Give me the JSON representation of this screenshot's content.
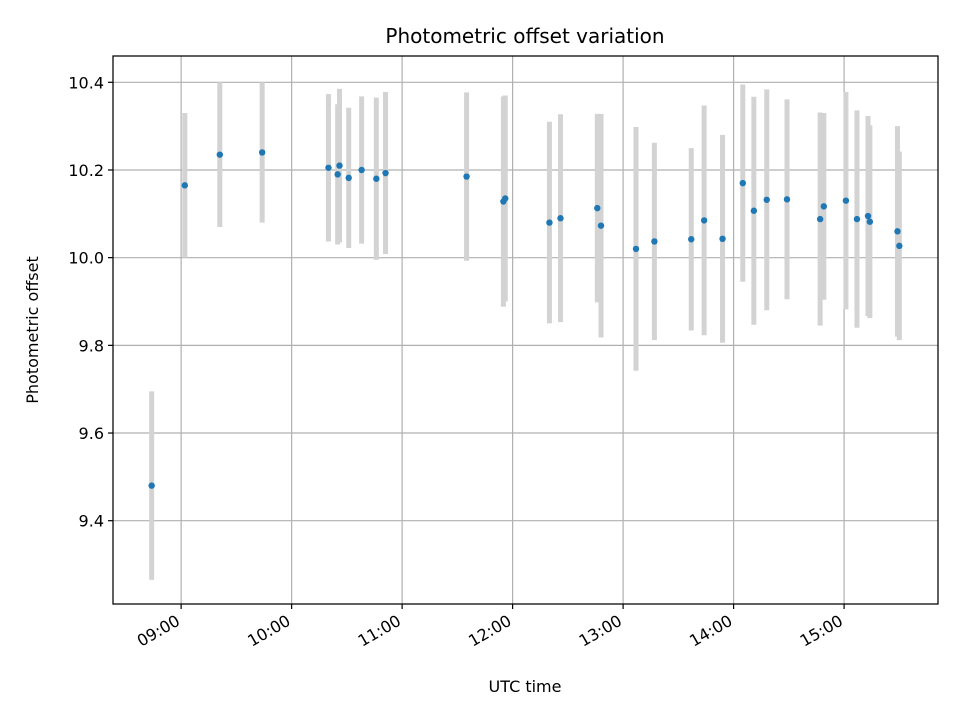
{
  "chart_data": {
    "type": "scatter",
    "title": "Photometric offset variation",
    "xlabel": "UTC time",
    "ylabel": "Photometric offset",
    "xlim": [
      "08:23",
      "15:51"
    ],
    "ylim": [
      9.21,
      10.46
    ],
    "x_ticks": [
      "09:00",
      "10:00",
      "11:00",
      "12:00",
      "13:00",
      "14:00",
      "15:00"
    ],
    "y_ticks": [
      9.4,
      9.6,
      9.8,
      10.0,
      10.2,
      10.4
    ],
    "grid": true,
    "colors": {
      "point": "#1f77b4",
      "errorbar": "#d3d3d3",
      "grid": "#b0b0b0"
    },
    "points": [
      {
        "t": "08:44",
        "y": 9.48,
        "err": 0.215
      },
      {
        "t": "09:02",
        "y": 10.165,
        "err": 0.165
      },
      {
        "t": "09:21",
        "y": 10.235,
        "err": 0.165
      },
      {
        "t": "09:44",
        "y": 10.24,
        "err": 0.16
      },
      {
        "t": "10:20",
        "y": 10.205,
        "err": 0.168
      },
      {
        "t": "10:25",
        "y": 10.19,
        "err": 0.16
      },
      {
        "t": "10:26",
        "y": 10.21,
        "err": 0.175
      },
      {
        "t": "10:31",
        "y": 10.182,
        "err": 0.16
      },
      {
        "t": "10:38",
        "y": 10.2,
        "err": 0.168
      },
      {
        "t": "10:46",
        "y": 10.18,
        "err": 0.185
      },
      {
        "t": "10:51",
        "y": 10.193,
        "err": 0.185
      },
      {
        "t": "11:35",
        "y": 10.185,
        "err": 0.192
      },
      {
        "t": "11:55",
        "y": 10.128,
        "err": 0.24
      },
      {
        "t": "11:56",
        "y": 10.135,
        "err": 0.235
      },
      {
        "t": "12:20",
        "y": 10.08,
        "err": 0.23
      },
      {
        "t": "12:26",
        "y": 10.09,
        "err": 0.237
      },
      {
        "t": "12:46",
        "y": 10.113,
        "err": 0.215
      },
      {
        "t": "12:48",
        "y": 10.073,
        "err": 0.255
      },
      {
        "t": "13:07",
        "y": 10.02,
        "err": 0.278
      },
      {
        "t": "13:17",
        "y": 10.037,
        "err": 0.225
      },
      {
        "t": "13:37",
        "y": 10.042,
        "err": 0.208
      },
      {
        "t": "13:44",
        "y": 10.085,
        "err": 0.262
      },
      {
        "t": "13:54",
        "y": 10.043,
        "err": 0.237
      },
      {
        "t": "14:05",
        "y": 10.17,
        "err": 0.225
      },
      {
        "t": "14:11",
        "y": 10.107,
        "err": 0.26
      },
      {
        "t": "14:18",
        "y": 10.132,
        "err": 0.252
      },
      {
        "t": "14:29",
        "y": 10.133,
        "err": 0.228
      },
      {
        "t": "14:47",
        "y": 10.088,
        "err": 0.243
      },
      {
        "t": "14:49",
        "y": 10.117,
        "err": 0.213
      },
      {
        "t": "15:01",
        "y": 10.13,
        "err": 0.248
      },
      {
        "t": "15:07",
        "y": 10.088,
        "err": 0.248
      },
      {
        "t": "15:13",
        "y": 10.095,
        "err": 0.228
      },
      {
        "t": "15:14",
        "y": 10.082,
        "err": 0.22
      },
      {
        "t": "15:29",
        "y": 10.06,
        "err": 0.24
      },
      {
        "t": "15:30",
        "y": 10.027,
        "err": 0.215
      }
    ]
  }
}
